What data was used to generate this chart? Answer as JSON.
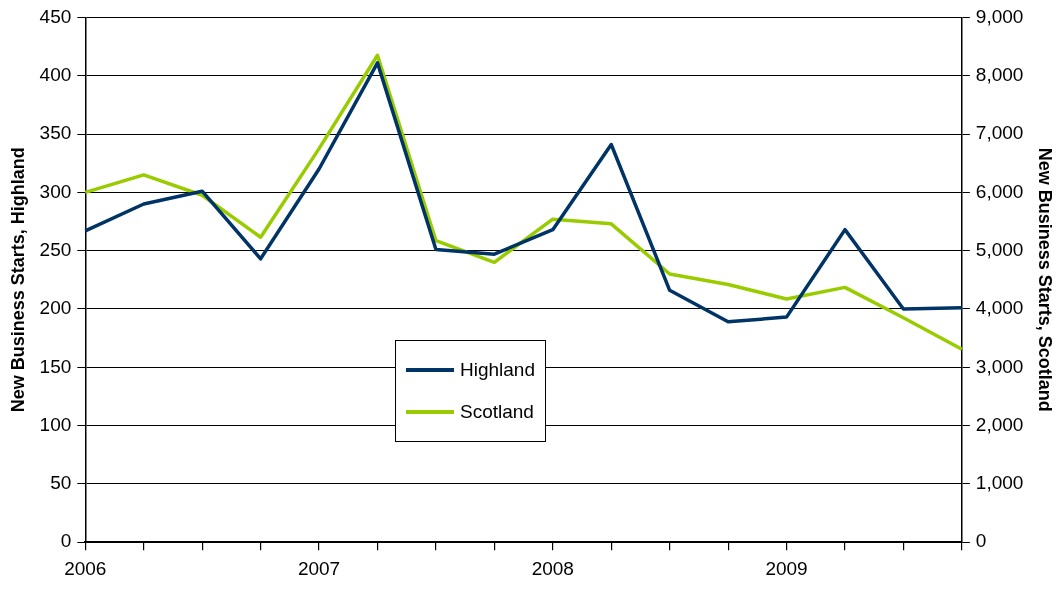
{
  "chart_data": {
    "type": "line",
    "ylabel": "New Business Starts, Highland",
    "y2label": "New Business Starts, Scotland",
    "categories": [
      "2006",
      null,
      null,
      null,
      "2007",
      null,
      null,
      null,
      "2008",
      null,
      null,
      null,
      "2009",
      null,
      null,
      null
    ],
    "series": [
      {
        "name": "Highland",
        "color": "#003366",
        "values": [
          267,
          290,
          301,
          243,
          320,
          411,
          251,
          247,
          268,
          341,
          216,
          189,
          193,
          268,
          200,
          201
        ]
      },
      {
        "name": "Scotland",
        "color": "#99cc00",
        "axis": "y2",
        "values": [
          6000,
          6300,
          5950,
          5230,
          6750,
          8350,
          5170,
          4800,
          5540,
          5460,
          4600,
          4420,
          4170,
          4370,
          3850,
          3310
        ]
      }
    ],
    "ylim": [
      0,
      450
    ],
    "yticks": [
      0,
      50,
      100,
      150,
      200,
      250,
      300,
      350,
      400,
      450
    ],
    "y2lim": [
      0,
      9000
    ],
    "y2ticks": [
      {
        "value": 0,
        "label": "0"
      },
      {
        "value": 1000,
        "label": "1,000"
      },
      {
        "value": 2000,
        "label": "2,000"
      },
      {
        "value": 3000,
        "label": "3,000"
      },
      {
        "value": 4000,
        "label": "4,000"
      },
      {
        "value": 5000,
        "label": "5,000"
      },
      {
        "value": 6000,
        "label": "6,000"
      },
      {
        "value": 7000,
        "label": "7,000"
      },
      {
        "value": 8000,
        "label": "8,000"
      },
      {
        "value": 9000,
        "label": "9,000"
      }
    ],
    "grid": "y",
    "legend": "bottom left",
    "marker": "none",
    "line_style": "solid"
  }
}
